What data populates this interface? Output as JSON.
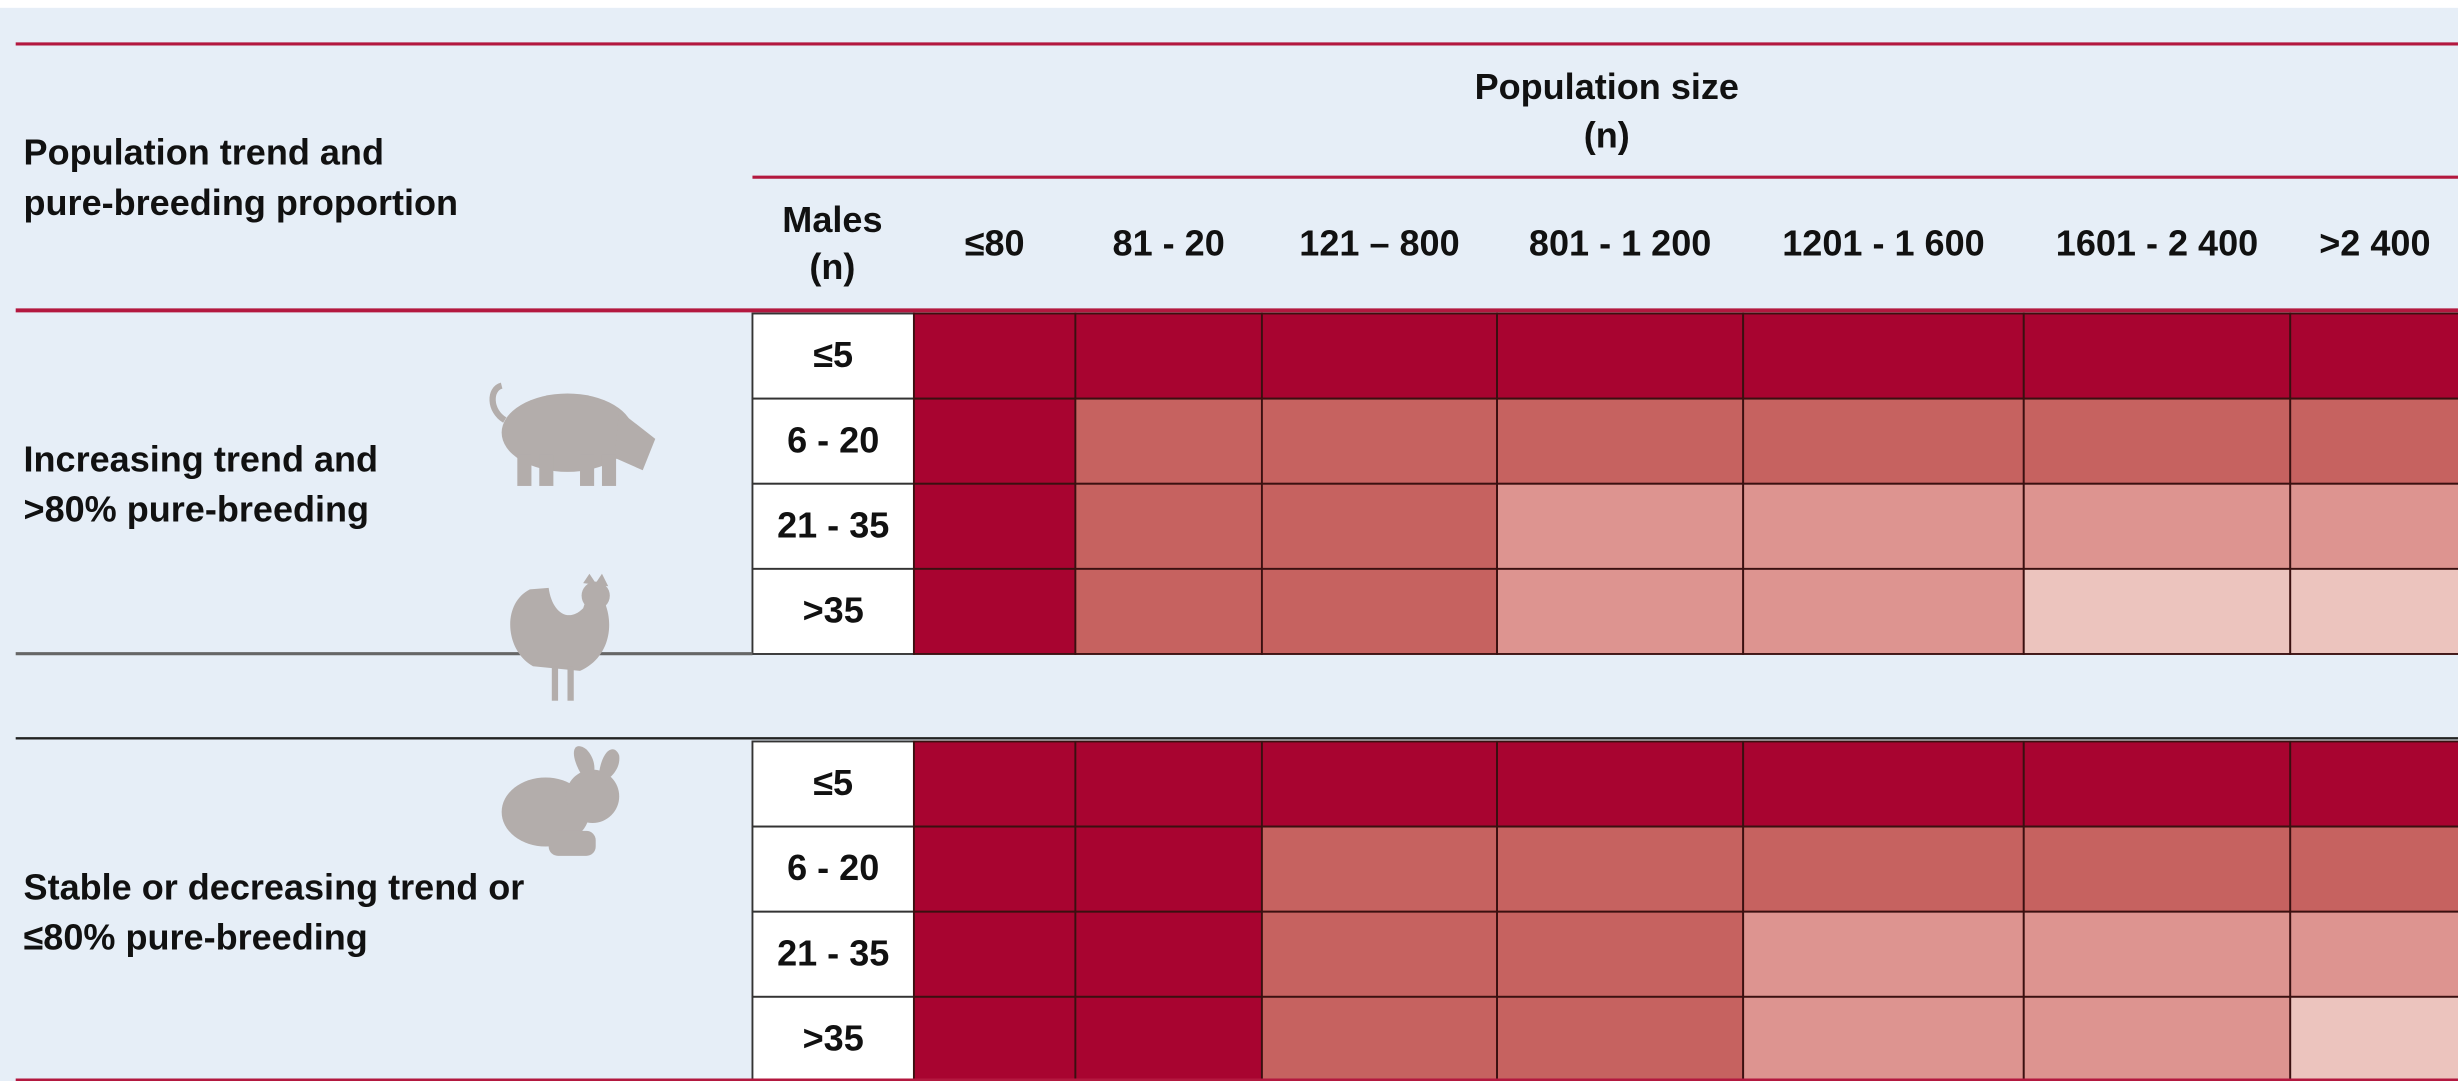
{
  "row_header": [
    "Population trend and",
    "pure-breeding proportion"
  ],
  "column_group": [
    "Population size",
    "(n)"
  ],
  "males_header": [
    "Males",
    "(n)"
  ],
  "columns": [
    "≤80",
    "81 - 20",
    "121 – 800",
    "801 - 1 200",
    "1201 - 1 600",
    "1601 - 2 400",
    ">2 400"
  ],
  "groups": [
    {
      "label": [
        "Increasing trend and",
        ">80% pure-breeding"
      ],
      "rows": [
        {
          "males": "≤5",
          "cells": [
            "#a80430",
            "#a80430",
            "#a80430",
            "#a80430",
            "#a80430",
            "#a80430",
            "#a80430"
          ]
        },
        {
          "males": "6 - 20",
          "cells": [
            "#a80430",
            "#c66260",
            "#c66260",
            "#c66260",
            "#c66260",
            "#c66260",
            "#c66260"
          ]
        },
        {
          "males": "21 - 35",
          "cells": [
            "#a80430",
            "#c66260",
            "#c66260",
            "#dd9490",
            "#dd9490",
            "#dd9490",
            "#dd9490"
          ]
        },
        {
          "males": ">35",
          "cells": [
            "#a80430",
            "#c66260",
            "#c66260",
            "#dd9490",
            "#dd9490",
            "#ecc4be",
            "#ecc4be"
          ]
        }
      ]
    },
    {
      "label": [
        "Stable or decreasing trend or",
        "≤80% pure-breeding"
      ],
      "rows": [
        {
          "males": "≤5",
          "cells": [
            "#a80430",
            "#a80430",
            "#a80430",
            "#a80430",
            "#a80430",
            "#a80430",
            "#a80430"
          ]
        },
        {
          "males": "6 - 20",
          "cells": [
            "#a80430",
            "#a80430",
            "#c66260",
            "#c66260",
            "#c66260",
            "#c66260",
            "#c66260"
          ]
        },
        {
          "males": "21 - 35",
          "cells": [
            "#a80430",
            "#a80430",
            "#c66260",
            "#c66260",
            "#dd9490",
            "#dd9490",
            "#dd9490"
          ]
        },
        {
          "males": ">35",
          "cells": [
            "#a80430",
            "#a80430",
            "#c66260",
            "#c66260",
            "#dd9490",
            "#dd9490",
            "#ecc4be"
          ]
        }
      ]
    }
  ]
}
